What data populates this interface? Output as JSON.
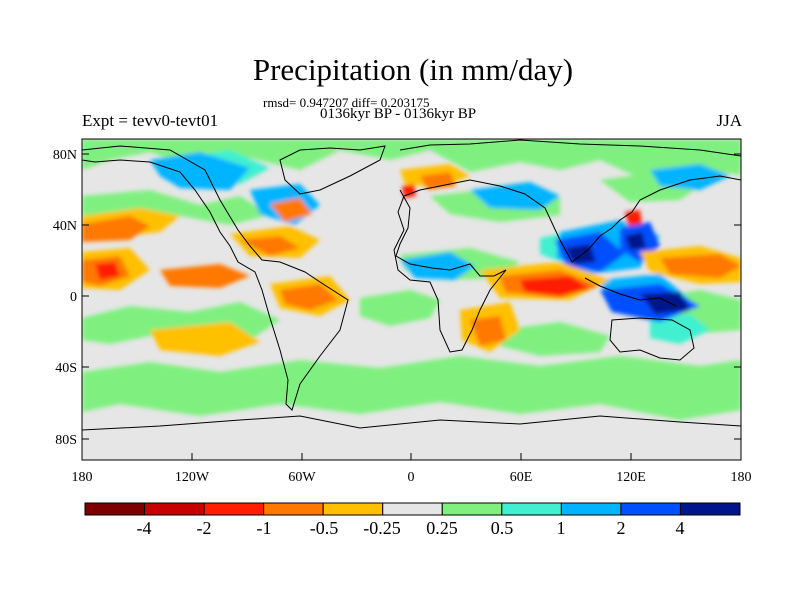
{
  "title": "Precipitation (in mm/day)",
  "stats_line": "rmsd= 0.947207 diff= 0.203175",
  "period_line": "0136kyr BP - 0136kyr BP",
  "left_string": "Expt = tevv0-tevt01",
  "right_string": "JJA",
  "lat_ticks": [
    "80N",
    "40N",
    "0",
    "40S",
    "80S"
  ],
  "lon_ticks": [
    "180",
    "120W",
    "60W",
    "0",
    "60E",
    "120E",
    "180"
  ],
  "colorbar": {
    "labels": [
      "-4",
      "-2",
      "-1",
      "-0.5",
      "-0.25",
      "0.25",
      "0.5",
      "1",
      "2",
      "4"
    ],
    "colors": [
      "#7d0000",
      "#c80000",
      "#ff1e00",
      "#ff7800",
      "#ffc000",
      "#e6e6e6",
      "#7ff07f",
      "#40f0d0",
      "#00b4ff",
      "#0050ff",
      "#00148c"
    ]
  }
}
